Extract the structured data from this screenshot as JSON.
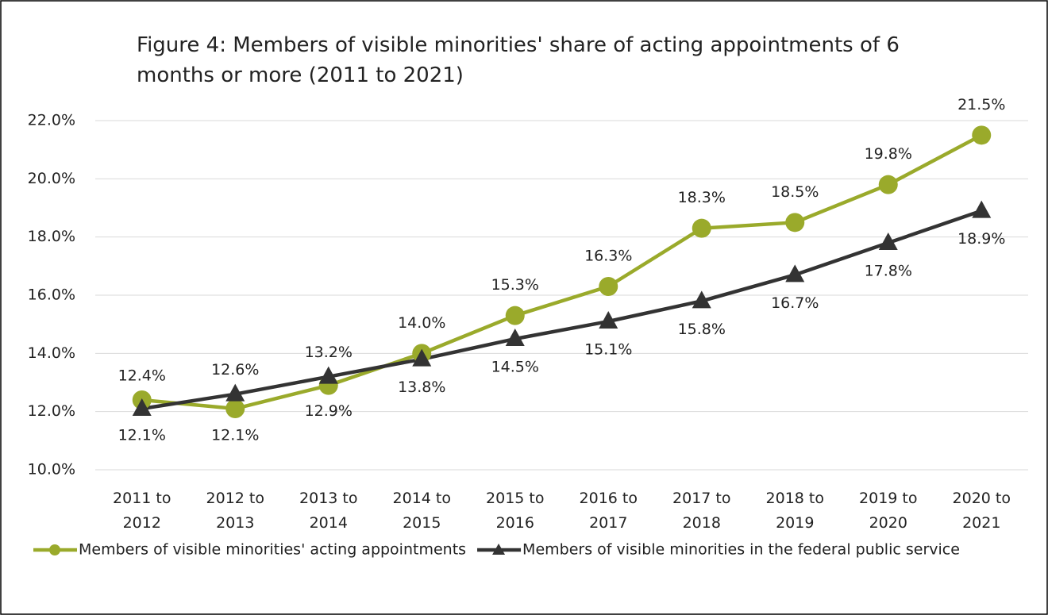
{
  "chart_data": {
    "type": "line",
    "title": "Figure 4: Members of visible minorities' share of acting appointments of 6 months or more (2011 to 2021)",
    "categories": [
      "2011 to 2012",
      "2012 to 2013",
      "2013 to 2014",
      "2014 to 2015",
      "2015 to 2016",
      "2016 to 2017",
      "2017 to 2018",
      "2018 to 2019",
      "2019 to 2020",
      "2020 to 2021"
    ],
    "series": [
      {
        "name": "Members of visible minorities' acting appointments",
        "color": "#9aaa2b",
        "marker": "circle",
        "values": [
          12.4,
          12.1,
          12.9,
          14.0,
          15.3,
          16.3,
          18.3,
          18.5,
          19.8,
          21.5
        ],
        "value_labels": [
          "12.4%",
          "12.1%",
          "12.9%",
          "14.0%",
          "15.3%",
          "16.3%",
          "18.3%",
          "18.5%",
          "19.8%",
          "21.5%"
        ]
      },
      {
        "name": "Members of visible minorities in the federal public service",
        "color": "#333333",
        "marker": "triangle",
        "values": [
          12.1,
          12.6,
          13.2,
          13.8,
          14.5,
          15.1,
          15.8,
          16.7,
          17.8,
          18.9
        ],
        "value_labels": [
          "12.1%",
          "12.6%",
          "13.2%",
          "13.8%",
          "14.5%",
          "15.1%",
          "15.8%",
          "16.7%",
          "17.8%",
          "18.9%"
        ]
      }
    ],
    "ylim": [
      10,
      22
    ],
    "yticks": [
      {
        "value": 10,
        "label": "10.0%"
      },
      {
        "value": 12,
        "label": "12.0%"
      },
      {
        "value": 14,
        "label": "14.0%"
      },
      {
        "value": 16,
        "label": "16.0%"
      },
      {
        "value": 18,
        "label": "18.0%"
      },
      {
        "value": 20,
        "label": "20.0%"
      },
      {
        "value": 22,
        "label": "22.0%"
      }
    ],
    "grid": true,
    "legend": "bottom"
  }
}
